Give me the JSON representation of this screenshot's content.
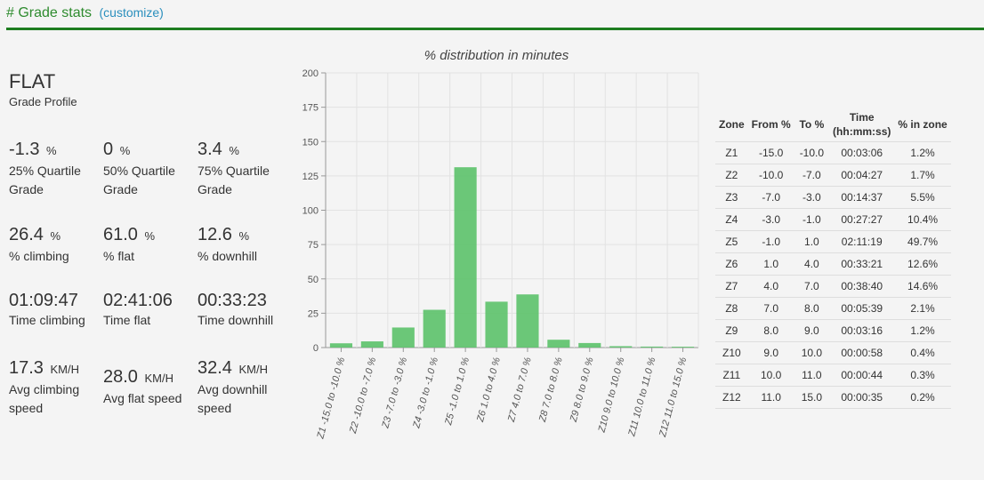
{
  "header": {
    "title": "# Grade stats",
    "customize": "(customize)"
  },
  "profile": {
    "value": "FLAT",
    "label": "Grade Profile"
  },
  "quartiles": [
    {
      "value": "-1.3",
      "unit": "%",
      "label": "25% Quartile Grade"
    },
    {
      "value": "0",
      "unit": "%",
      "label": "50% Quartile Grade"
    },
    {
      "value": "3.4",
      "unit": "%",
      "label": "75% Quartile Grade"
    }
  ],
  "percents": [
    {
      "value": "26.4",
      "unit": "%",
      "label": "% climbing"
    },
    {
      "value": "61.0",
      "unit": "%",
      "label": "% flat"
    },
    {
      "value": "12.6",
      "unit": "%",
      "label": "% downhill"
    }
  ],
  "times": [
    {
      "value": "01:09:47",
      "label": "Time climbing"
    },
    {
      "value": "02:41:06",
      "label": "Time flat"
    },
    {
      "value": "00:33:23",
      "label": "Time downhill"
    }
  ],
  "speeds": [
    {
      "value": "17.3",
      "unit": "KM/H",
      "label": "Avg climbing speed"
    },
    {
      "value": "28.0",
      "unit": "KM/H",
      "label": "Avg flat speed"
    },
    {
      "value": "32.4",
      "unit": "KM/H",
      "label": "Avg downhill speed"
    }
  ],
  "chart_data": {
    "type": "bar",
    "title": "% distribution in minutes",
    "categories": [
      "Z1 -15.0 to -10.0 %",
      "Z2 -10.0 to -7.0 %",
      "Z3 -7.0 to -3.0 %",
      "Z4 -3.0 to -1.0 %",
      "Z5 -1.0 to 1.0 %",
      "Z6 1.0 to 4.0 %",
      "Z7 4.0 to 7.0 %",
      "Z8 7.0 to 8.0 %",
      "Z9 8.0 to 9.0 %",
      "Z10 9.0 to 10.0 %",
      "Z11 10.0 to 11.0 %",
      "Z12 11.0 to 15.0 %"
    ],
    "values": [
      3.1,
      4.5,
      14.6,
      27.5,
      131.3,
      33.4,
      38.7,
      5.7,
      3.3,
      1.0,
      0.7,
      0.6
    ],
    "yticks": [
      "0",
      "25",
      "50",
      "75",
      "100",
      "125",
      "150",
      "175",
      "200"
    ],
    "ylim": [
      0,
      200
    ],
    "grid": true,
    "color": "#5cc26a"
  },
  "zones_table": {
    "headers": [
      "Zone",
      "From %",
      "To %",
      "Time (hh:mm:ss)",
      "% in zone"
    ],
    "time_header_line1": "Time",
    "time_header_line2": "(hh:mm:ss)",
    "rows": [
      [
        "Z1",
        "-15.0",
        "-10.0",
        "00:03:06",
        "1.2%"
      ],
      [
        "Z2",
        "-10.0",
        "-7.0",
        "00:04:27",
        "1.7%"
      ],
      [
        "Z3",
        "-7.0",
        "-3.0",
        "00:14:37",
        "5.5%"
      ],
      [
        "Z4",
        "-3.0",
        "-1.0",
        "00:27:27",
        "10.4%"
      ],
      [
        "Z5",
        "-1.0",
        "1.0",
        "02:11:19",
        "49.7%"
      ],
      [
        "Z6",
        "1.0",
        "4.0",
        "00:33:21",
        "12.6%"
      ],
      [
        "Z7",
        "4.0",
        "7.0",
        "00:38:40",
        "14.6%"
      ],
      [
        "Z8",
        "7.0",
        "8.0",
        "00:05:39",
        "2.1%"
      ],
      [
        "Z9",
        "8.0",
        "9.0",
        "00:03:16",
        "1.2%"
      ],
      [
        "Z10",
        "9.0",
        "10.0",
        "00:00:58",
        "0.4%"
      ],
      [
        "Z11",
        "10.0",
        "11.0",
        "00:00:44",
        "0.3%"
      ],
      [
        "Z12",
        "11.0",
        "15.0",
        "00:00:35",
        "0.2%"
      ]
    ]
  }
}
